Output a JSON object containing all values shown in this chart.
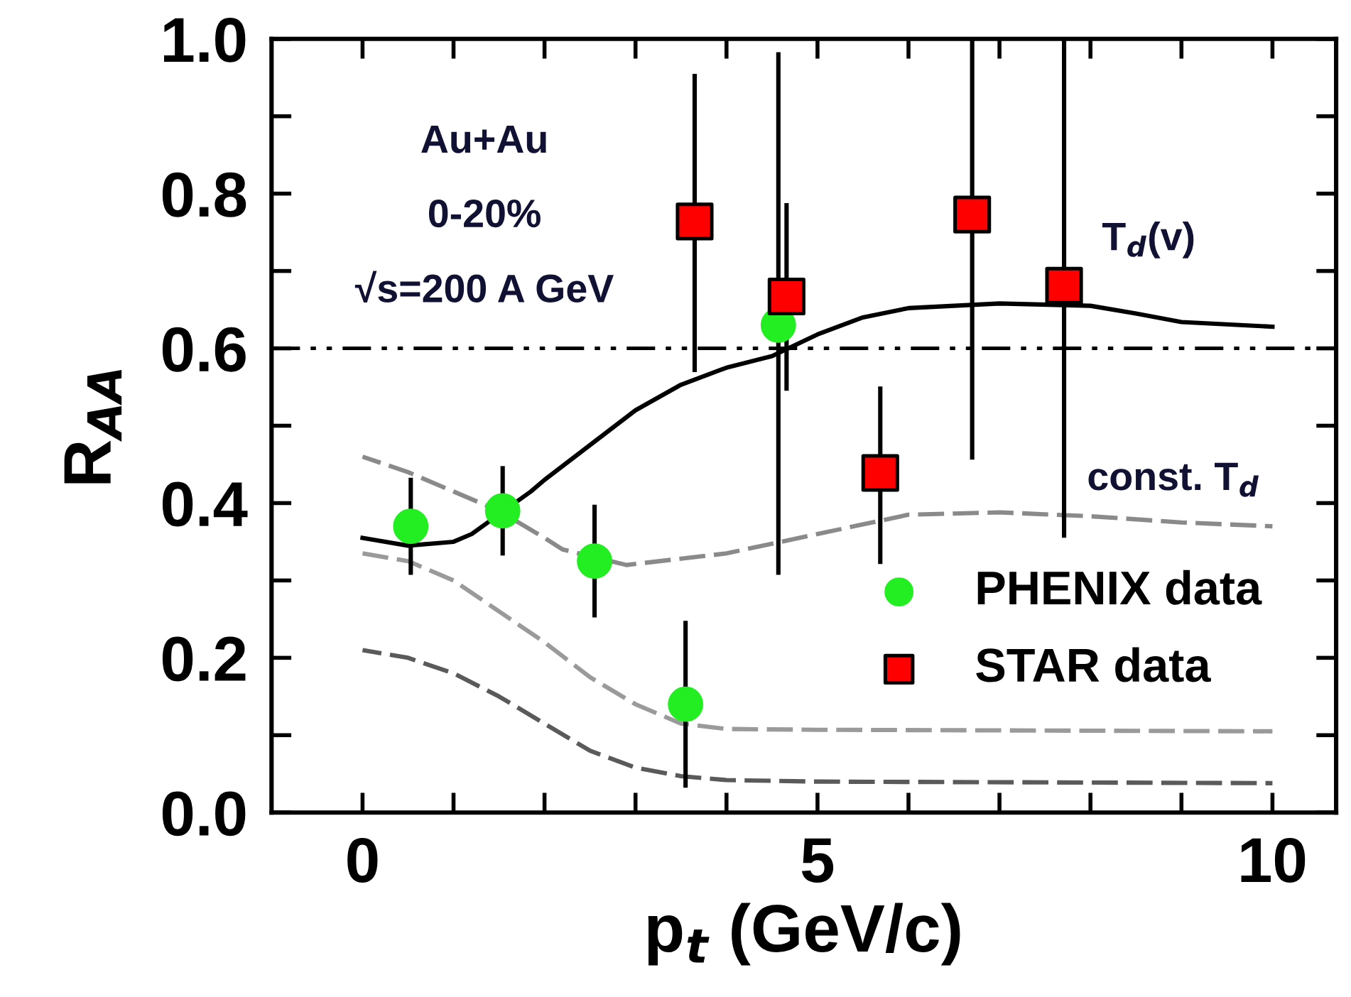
{
  "chart_data": {
    "type": "scatter",
    "xlabel": "p$_{t}$ (GeV/c)",
    "ylabel": "R$_{AA}$",
    "xlim": [
      -1,
      10.7
    ],
    "ylim": [
      0,
      1
    ],
    "xticks": [
      0,
      {
        "value": 1,
        "label": null
      },
      {
        "value": 2,
        "label": null
      },
      {
        "value": 3,
        "label": null
      },
      {
        "value": 4,
        "label": null
      },
      5,
      {
        "value": 6,
        "label": null
      },
      {
        "value": 7,
        "label": null
      },
      {
        "value": 8,
        "label": null
      },
      {
        "value": 9,
        "label": null
      },
      10
    ],
    "yticks": [
      {
        "value": 0,
        "label": "0.0"
      },
      {
        "value": 0.1,
        "label": null
      },
      {
        "value": 0.2,
        "label": "0.2"
      },
      {
        "value": 0.3,
        "label": null
      },
      {
        "value": 0.4,
        "label": "0.4"
      },
      {
        "value": 0.5,
        "label": null
      },
      {
        "value": 0.6,
        "label": "0.6"
      },
      {
        "value": 0.7,
        "label": null
      },
      {
        "value": 0.8,
        "label": "0.8"
      },
      {
        "value": 0.9,
        "label": null
      },
      {
        "value": 1,
        "label": "1.0"
      }
    ],
    "grid": false,
    "legend": "right",
    "ref_lines": [
      {
        "axis": "y",
        "value": 0.6,
        "color": "#000000",
        "line_style": "dashdot"
      }
    ],
    "annotations": [
      "Au+Au",
      "0-20%",
      "√s=200 A GeV",
      "T$_{d}$(v)",
      "const. T$_{d}$"
    ],
    "series": [
      {
        "type": "line",
        "color": "#000000",
        "line_style": "solid",
        "x": [
          0,
          0.5,
          1,
          1.2,
          1.85,
          2,
          2.5,
          3,
          3.5,
          4,
          4.5,
          5,
          5.5,
          6,
          7,
          8,
          8.5,
          9,
          10
        ],
        "values": [
          0.355,
          0.345,
          0.35,
          0.36,
          0.415,
          0.43,
          0.475,
          0.52,
          0.553,
          0.575,
          0.59,
          0.618,
          0.64,
          0.652,
          0.658,
          0.655,
          0.645,
          0.634,
          0.628
        ]
      },
      {
        "type": "line",
        "color": "#8a8a8a",
        "line_style": "dashed",
        "x": [
          0,
          0.5,
          1,
          1.5,
          2,
          2.2,
          2.9,
          4,
          5,
          6,
          7,
          8,
          9,
          10
        ],
        "values": [
          0.46,
          0.44,
          0.415,
          0.39,
          0.355,
          0.34,
          0.32,
          0.335,
          0.36,
          0.385,
          0.388,
          0.383,
          0.375,
          0.37
        ]
      },
      {
        "type": "line",
        "color": "#9a9a9a",
        "line_style": "dashed",
        "x": [
          0,
          0.5,
          1,
          1.5,
          2,
          2.5,
          3,
          3.5,
          4,
          5,
          10
        ],
        "values": [
          0.335,
          0.325,
          0.3,
          0.26,
          0.22,
          0.175,
          0.14,
          0.115,
          0.108,
          0.107,
          0.105
        ]
      },
      {
        "type": "line",
        "color": "#5a5a5a",
        "line_style": "dashed",
        "x": [
          0,
          0.5,
          1,
          1.5,
          2,
          2.5,
          3,
          3.5,
          4,
          5,
          10
        ],
        "values": [
          0.21,
          0.2,
          0.18,
          0.15,
          0.115,
          0.08,
          0.058,
          0.047,
          0.042,
          0.04,
          0.038
        ]
      },
      {
        "name": "PHENIX data",
        "color": "#22ee22",
        "marker": "circle",
        "x": [
          0.53,
          1.54,
          2.55,
          3.55,
          4.57
        ],
        "values": [
          0.37,
          0.39,
          0.325,
          0.14,
          0.63
        ],
        "errors": [
          [
            0.31,
            0.43
          ],
          [
            0.335,
            0.445
          ],
          [
            0.255,
            0.395
          ],
          [
            0.035,
            0.245
          ],
          [
            0.31,
            0.98
          ]
        ]
      },
      {
        "name": "STAR data",
        "color": "#ff0000",
        "marker": "square",
        "x": [
          3.65,
          4.66,
          5.69,
          6.7,
          7.71
        ],
        "values": [
          0.764,
          0.667,
          0.439,
          0.773,
          0.681
        ],
        "errors": [
          [
            0.572,
            0.952
          ],
          [
            0.548,
            0.785
          ],
          [
            0.324,
            0.548
          ],
          [
            0.459,
            1.0
          ],
          [
            0.358,
            1.0
          ]
        ]
      }
    ]
  }
}
